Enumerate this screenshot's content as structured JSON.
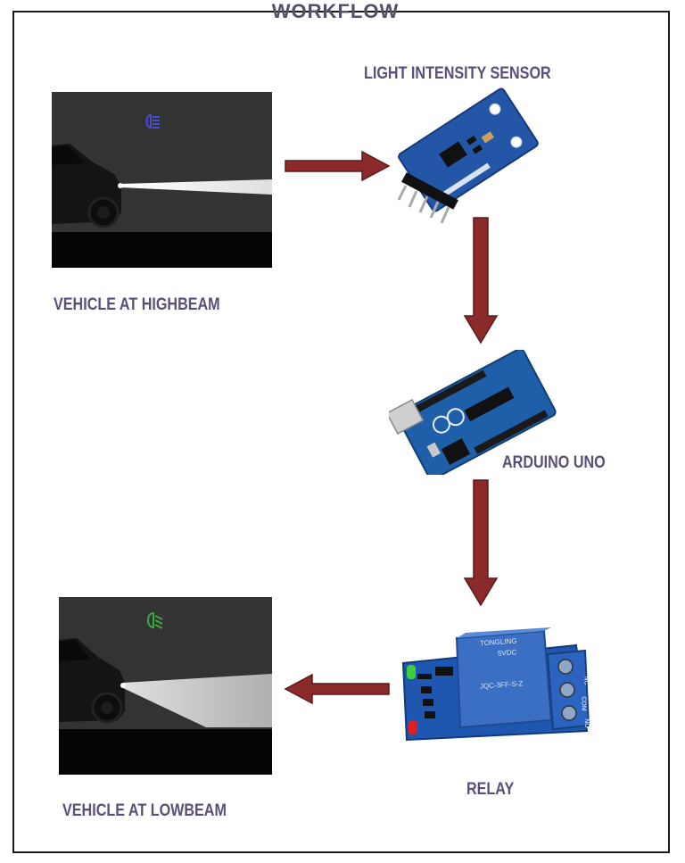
{
  "header": {
    "partial_title": "WORKFLOW"
  },
  "nodes": {
    "vehicle_highbeam": {
      "label": "VEHICLE AT HIGHBEAM"
    },
    "light_sensor": {
      "label": "LIGHT INTENSITY SENSOR"
    },
    "arduino": {
      "label": "ARDUINO UNO"
    },
    "relay": {
      "label": "RELAY",
      "module_text": "TONGLING",
      "module_text2": "5VDC",
      "module_part": "JQC-3FF-S-Z",
      "terminal_no": "NO",
      "terminal_com": "COM",
      "terminal_nc": "NC"
    },
    "vehicle_lowbeam": {
      "label": "VEHICLE AT LOWBEAM"
    }
  },
  "colors": {
    "label": "#5a4f78",
    "arrow": "#8b2a2a",
    "pcb_blue": "#2456a8",
    "relay_blue": "#3a6fc4"
  },
  "icons": {
    "highbeam_indicator": "highbeam-icon",
    "lowbeam_indicator": "lowbeam-icon"
  }
}
